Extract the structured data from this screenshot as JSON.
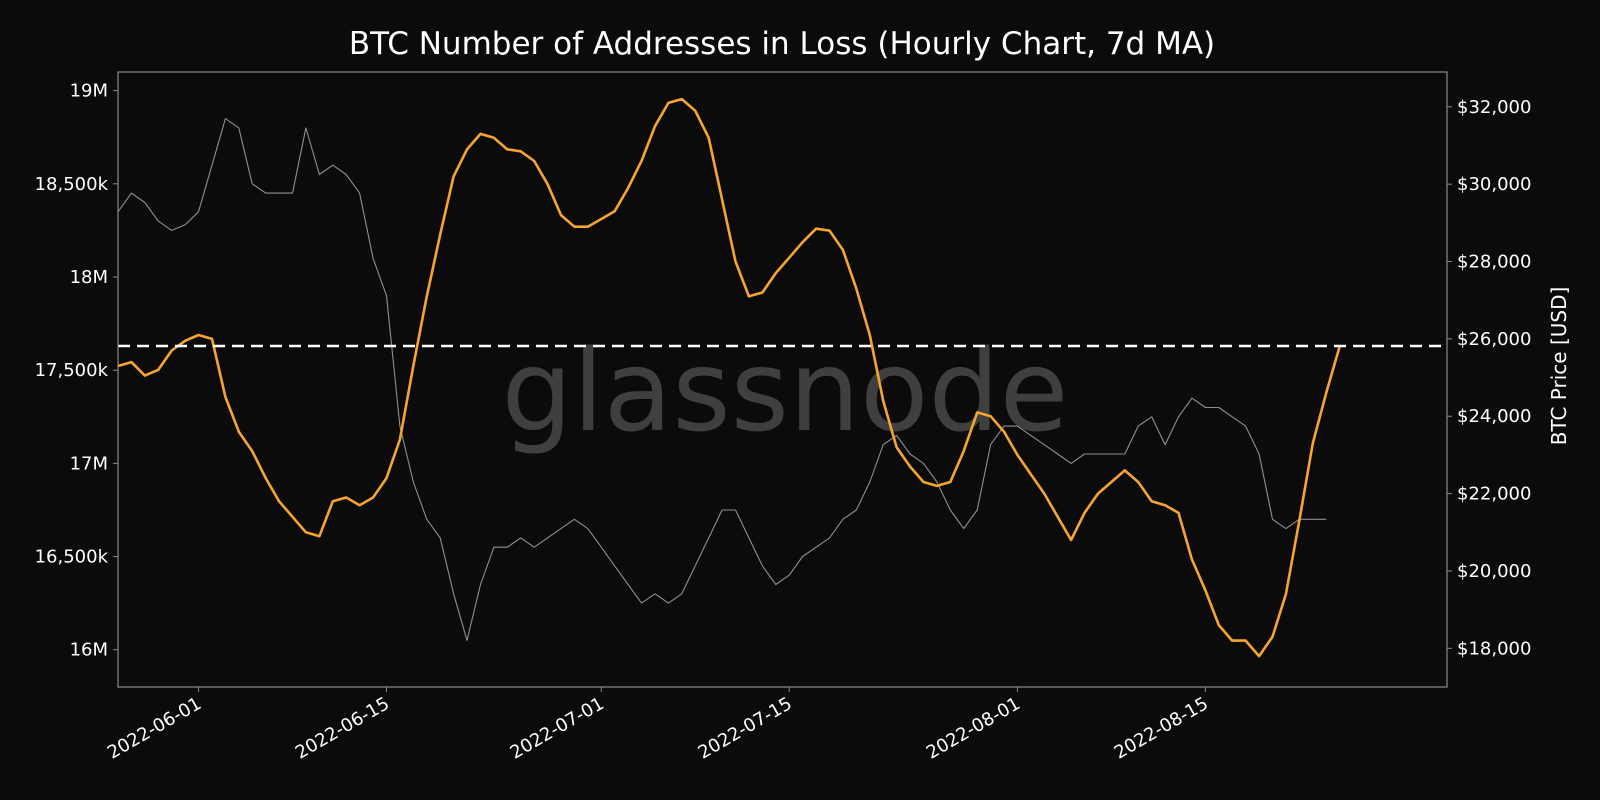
{
  "watermark": "glassnode",
  "colors": {
    "background": "#0b0b0b",
    "addresses_line": "#8f8f8f",
    "price_line": "#f7a530",
    "reference_line": "#ffffff",
    "frame": "#8a8a8a"
  },
  "chart_data": {
    "type": "line",
    "title": "BTC Number of Addresses in Loss (Hourly Chart, 7d MA)",
    "xlabel": "",
    "ylabel_left": "",
    "ylabel_right": "BTC Price [USD]",
    "x_range": [
      "2022-05-26",
      "2022-09-02"
    ],
    "y_left_range": [
      15800000,
      19100000
    ],
    "y_right_range": [
      17000,
      32900
    ],
    "x_ticks": [
      "2022-06-01",
      "2022-06-15",
      "2022-07-01",
      "2022-07-15",
      "2022-08-01",
      "2022-08-15"
    ],
    "y_left_ticks": [
      {
        "value": 16000000,
        "label": "16M"
      },
      {
        "value": 16500000,
        "label": "16,500k"
      },
      {
        "value": 17000000,
        "label": "17M"
      },
      {
        "value": 17500000,
        "label": "17,500k"
      },
      {
        "value": 18000000,
        "label": "18M"
      },
      {
        "value": 18500000,
        "label": "18,500k"
      },
      {
        "value": 19000000,
        "label": "19M"
      }
    ],
    "y_right_ticks": [
      {
        "value": 18000,
        "label": "$18,000"
      },
      {
        "value": 20000,
        "label": "$20,000"
      },
      {
        "value": 22000,
        "label": "$22,000"
      },
      {
        "value": 24000,
        "label": "$24,000"
      },
      {
        "value": 26000,
        "label": "$26,000"
      },
      {
        "value": 28000,
        "label": "$28,000"
      },
      {
        "value": 30000,
        "label": "$30,000"
      },
      {
        "value": 32000,
        "label": "$32,000"
      }
    ],
    "reference_line": {
      "axis": "left",
      "value": 17630000,
      "style": "dashed"
    },
    "series": [
      {
        "axis": "left",
        "style": "price-thin-gray",
        "points": [
          [
            "2022-05-26",
            18350000
          ],
          [
            "2022-05-27",
            18450000
          ],
          [
            "2022-05-28",
            18400000
          ],
          [
            "2022-05-29",
            18300000
          ],
          [
            "2022-05-30",
            18250000
          ],
          [
            "2022-05-31",
            18280000
          ],
          [
            "2022-06-01",
            18350000
          ],
          [
            "2022-06-02",
            18600000
          ],
          [
            "2022-06-03",
            18850000
          ],
          [
            "2022-06-04",
            18800000
          ],
          [
            "2022-06-05",
            18500000
          ],
          [
            "2022-06-06",
            18450000
          ],
          [
            "2022-06-07",
            18450000
          ],
          [
            "2022-06-08",
            18450000
          ],
          [
            "2022-06-09",
            18800000
          ],
          [
            "2022-06-10",
            18550000
          ],
          [
            "2022-06-11",
            18600000
          ],
          [
            "2022-06-12",
            18550000
          ],
          [
            "2022-06-13",
            18450000
          ],
          [
            "2022-06-14",
            18100000
          ],
          [
            "2022-06-15",
            17900000
          ],
          [
            "2022-06-16",
            17200000
          ],
          [
            "2022-06-17",
            16900000
          ],
          [
            "2022-06-18",
            16700000
          ],
          [
            "2022-06-19",
            16600000
          ],
          [
            "2022-06-20",
            16300000
          ],
          [
            "2022-06-21",
            16050000
          ],
          [
            "2022-06-22",
            16350000
          ],
          [
            "2022-06-23",
            16550000
          ],
          [
            "2022-06-24",
            16550000
          ],
          [
            "2022-06-25",
            16600000
          ],
          [
            "2022-06-26",
            16550000
          ],
          [
            "2022-06-27",
            16600000
          ],
          [
            "2022-06-28",
            16650000
          ],
          [
            "2022-06-29",
            16700000
          ],
          [
            "2022-06-30",
            16650000
          ],
          [
            "2022-07-01",
            16550000
          ],
          [
            "2022-07-02",
            16450000
          ],
          [
            "2022-07-03",
            16350000
          ],
          [
            "2022-07-04",
            16250000
          ],
          [
            "2022-07-05",
            16300000
          ],
          [
            "2022-07-06",
            16250000
          ],
          [
            "2022-07-07",
            16300000
          ],
          [
            "2022-07-08",
            16450000
          ],
          [
            "2022-07-09",
            16600000
          ],
          [
            "2022-07-10",
            16750000
          ],
          [
            "2022-07-11",
            16750000
          ],
          [
            "2022-07-12",
            16600000
          ],
          [
            "2022-07-13",
            16450000
          ],
          [
            "2022-07-14",
            16350000
          ],
          [
            "2022-07-15",
            16400000
          ],
          [
            "2022-07-16",
            16500000
          ],
          [
            "2022-07-17",
            16550000
          ],
          [
            "2022-07-18",
            16600000
          ],
          [
            "2022-07-19",
            16700000
          ],
          [
            "2022-07-20",
            16750000
          ],
          [
            "2022-07-21",
            16900000
          ],
          [
            "2022-07-22",
            17100000
          ],
          [
            "2022-07-23",
            17150000
          ],
          [
            "2022-07-24",
            17050000
          ],
          [
            "2022-07-25",
            17000000
          ],
          [
            "2022-07-26",
            16900000
          ],
          [
            "2022-07-27",
            16750000
          ],
          [
            "2022-07-28",
            16650000
          ],
          [
            "2022-07-29",
            16750000
          ],
          [
            "2022-07-30",
            17100000
          ],
          [
            "2022-07-31",
            17200000
          ],
          [
            "2022-08-01",
            17200000
          ],
          [
            "2022-08-02",
            17150000
          ],
          [
            "2022-08-03",
            17100000
          ],
          [
            "2022-08-04",
            17050000
          ],
          [
            "2022-08-05",
            17000000
          ],
          [
            "2022-08-06",
            17050000
          ],
          [
            "2022-08-07",
            17050000
          ],
          [
            "2022-08-08",
            17050000
          ],
          [
            "2022-08-09",
            17050000
          ],
          [
            "2022-08-10",
            17200000
          ],
          [
            "2022-08-11",
            17250000
          ],
          [
            "2022-08-12",
            17100000
          ],
          [
            "2022-08-13",
            17250000
          ],
          [
            "2022-08-14",
            17350000
          ],
          [
            "2022-08-15",
            17300000
          ],
          [
            "2022-08-16",
            17300000
          ],
          [
            "2022-08-17",
            17250000
          ],
          [
            "2022-08-18",
            17200000
          ],
          [
            "2022-08-19",
            17050000
          ],
          [
            "2022-08-20",
            16700000
          ],
          [
            "2022-08-21",
            16650000
          ],
          [
            "2022-08-22",
            16700000
          ],
          [
            "2022-08-23",
            16700000
          ],
          [
            "2022-08-24",
            16700000
          ]
        ]
      },
      {
        "axis": "right",
        "style": "addresses-orange",
        "points": [
          [
            "2022-05-26",
            25300
          ],
          [
            "2022-05-27",
            25400
          ],
          [
            "2022-05-28",
            25050
          ],
          [
            "2022-05-29",
            25200
          ],
          [
            "2022-05-30",
            25700
          ],
          [
            "2022-05-31",
            25950
          ],
          [
            "2022-06-01",
            26100
          ],
          [
            "2022-06-02",
            26000
          ],
          [
            "2022-06-03",
            24500
          ],
          [
            "2022-06-04",
            23600
          ],
          [
            "2022-06-05",
            23100
          ],
          [
            "2022-06-06",
            22400
          ],
          [
            "2022-06-07",
            21800
          ],
          [
            "2022-06-08",
            21400
          ],
          [
            "2022-06-09",
            21000
          ],
          [
            "2022-06-10",
            20900
          ],
          [
            "2022-06-11",
            21800
          ],
          [
            "2022-06-12",
            21900
          ],
          [
            "2022-06-13",
            21700
          ],
          [
            "2022-06-14",
            21900
          ],
          [
            "2022-06-15",
            22400
          ],
          [
            "2022-06-16",
            23400
          ],
          [
            "2022-06-17",
            25300
          ],
          [
            "2022-06-18",
            27100
          ],
          [
            "2022-06-19",
            28700
          ],
          [
            "2022-06-20",
            30200
          ],
          [
            "2022-06-21",
            30900
          ],
          [
            "2022-06-22",
            31300
          ],
          [
            "2022-06-23",
            31200
          ],
          [
            "2022-06-24",
            30900
          ],
          [
            "2022-06-25",
            30850
          ],
          [
            "2022-06-26",
            30600
          ],
          [
            "2022-06-27",
            30000
          ],
          [
            "2022-06-28",
            29200
          ],
          [
            "2022-06-29",
            28900
          ],
          [
            "2022-06-30",
            28900
          ],
          [
            "2022-07-01",
            29100
          ],
          [
            "2022-07-02",
            29300
          ],
          [
            "2022-07-03",
            29900
          ],
          [
            "2022-07-04",
            30600
          ],
          [
            "2022-07-05",
            31500
          ],
          [
            "2022-07-06",
            32100
          ],
          [
            "2022-07-07",
            32200
          ],
          [
            "2022-07-08",
            31900
          ],
          [
            "2022-07-09",
            31200
          ],
          [
            "2022-07-10",
            29600
          ],
          [
            "2022-07-11",
            28000
          ],
          [
            "2022-07-12",
            27100
          ],
          [
            "2022-07-13",
            27200
          ],
          [
            "2022-07-14",
            27700
          ],
          [
            "2022-07-15",
            28100
          ],
          [
            "2022-07-16",
            28500
          ],
          [
            "2022-07-17",
            28850
          ],
          [
            "2022-07-18",
            28800
          ],
          [
            "2022-07-19",
            28300
          ],
          [
            "2022-07-20",
            27300
          ],
          [
            "2022-07-21",
            26100
          ],
          [
            "2022-07-22",
            24400
          ],
          [
            "2022-07-23",
            23200
          ],
          [
            "2022-07-24",
            22700
          ],
          [
            "2022-07-25",
            22300
          ],
          [
            "2022-07-26",
            22200
          ],
          [
            "2022-07-27",
            22300
          ],
          [
            "2022-07-28",
            23100
          ],
          [
            "2022-07-29",
            24100
          ],
          [
            "2022-07-30",
            24000
          ],
          [
            "2022-07-31",
            23600
          ],
          [
            "2022-08-01",
            23000
          ],
          [
            "2022-08-02",
            22500
          ],
          [
            "2022-08-03",
            22000
          ],
          [
            "2022-08-04",
            21400
          ],
          [
            "2022-08-05",
            20800
          ],
          [
            "2022-08-06",
            21500
          ],
          [
            "2022-08-07",
            22000
          ],
          [
            "2022-08-08",
            22300
          ],
          [
            "2022-08-09",
            22600
          ],
          [
            "2022-08-10",
            22300
          ],
          [
            "2022-08-11",
            21800
          ],
          [
            "2022-08-12",
            21700
          ],
          [
            "2022-08-13",
            21500
          ],
          [
            "2022-08-14",
            20300
          ],
          [
            "2022-08-15",
            19500
          ],
          [
            "2022-08-16",
            18600
          ],
          [
            "2022-08-17",
            18200
          ],
          [
            "2022-08-18",
            18200
          ],
          [
            "2022-08-19",
            17800
          ],
          [
            "2022-08-20",
            18300
          ],
          [
            "2022-08-21",
            19400
          ],
          [
            "2022-08-22",
            21300
          ],
          [
            "2022-08-23",
            23300
          ],
          [
            "2022-08-24",
            24600
          ],
          [
            "2022-08-25",
            25800
          ]
        ]
      }
    ]
  }
}
